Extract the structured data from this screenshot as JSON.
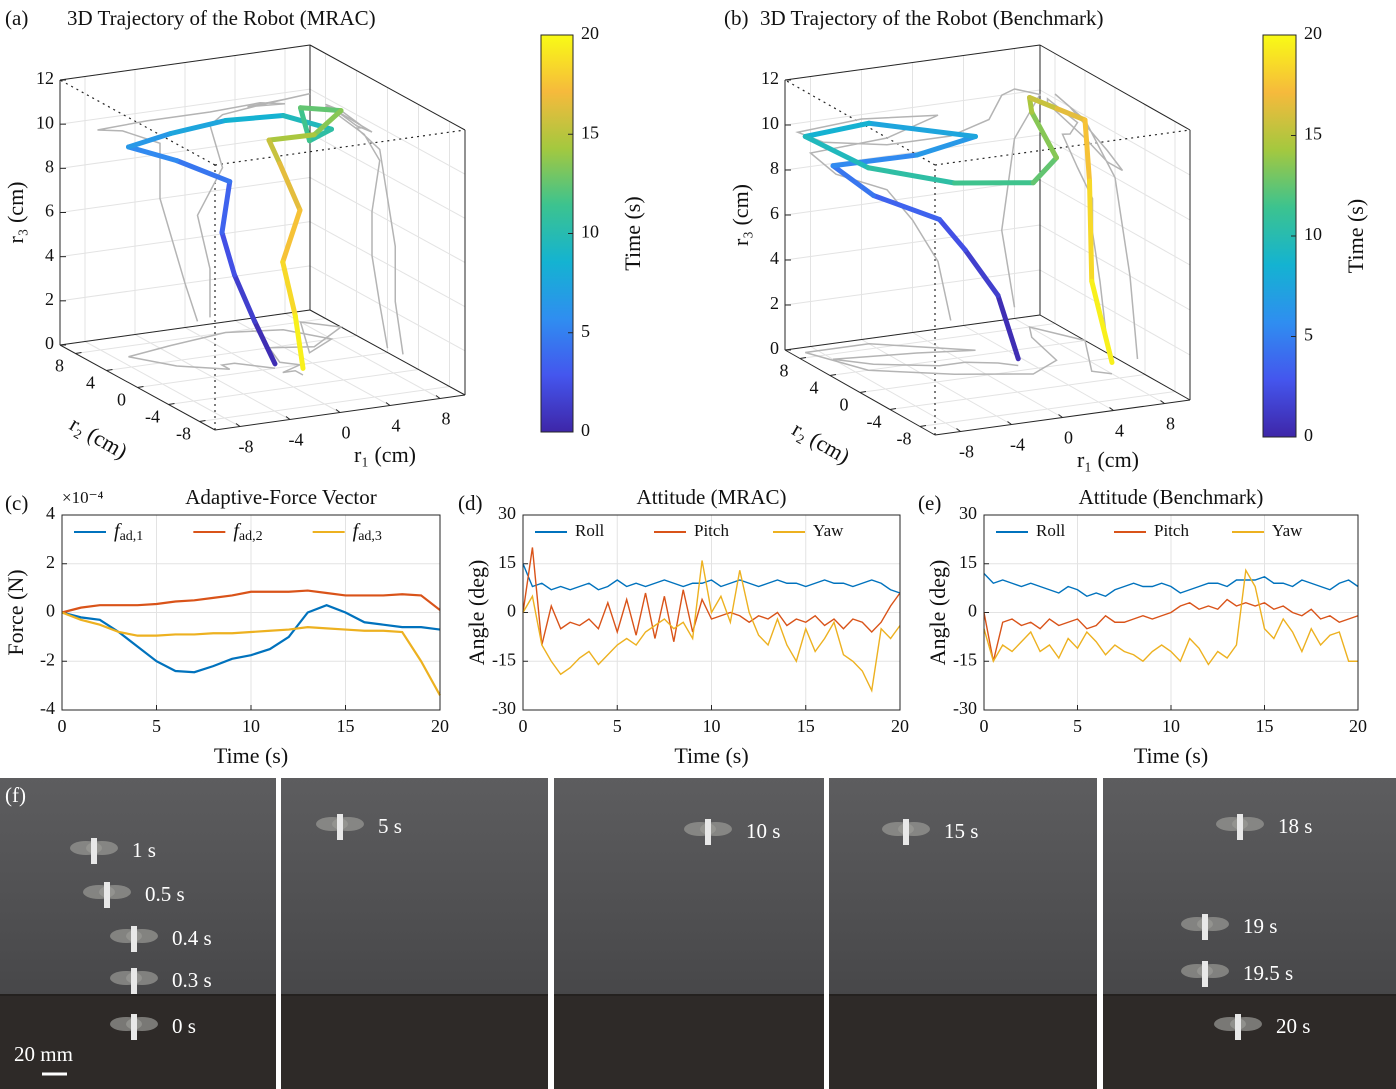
{
  "chart_data": [
    {
      "type": "trajectory3d",
      "panel_label": "(a)",
      "title": "3D Trajectory of the Robot (MRAC)",
      "xlabel": "r₁ (cm)",
      "ylabel": "r₂ (cm)",
      "zlabel": "r₃ (cm)",
      "xlim": [
        -10,
        10
      ],
      "ylim": [
        -10,
        10
      ],
      "zlim": [
        0,
        12
      ],
      "xticks": [
        -8,
        -4,
        0,
        4,
        8
      ],
      "yticks": [
        8,
        4,
        0,
        -4,
        -8
      ],
      "zticks": [
        0,
        2,
        4,
        6,
        8,
        10,
        12
      ],
      "t": [
        0,
        1,
        2,
        3,
        4,
        5,
        6,
        7,
        8,
        9,
        10,
        11,
        12,
        13,
        14,
        15,
        16,
        17,
        18,
        19,
        20
      ],
      "x": [
        1,
        0,
        -1,
        -2,
        -2,
        -5,
        -7,
        -3,
        2,
        6,
        8,
        5,
        8,
        10,
        6,
        3,
        2,
        3,
        1,
        2,
        2
      ],
      "y": [
        0,
        1,
        2,
        2,
        1,
        3,
        6,
        7,
        8,
        7,
        4,
        2,
        8,
        6,
        3,
        4,
        1,
        0,
        -1,
        -1,
        -2
      ],
      "z": [
        0.2,
        2,
        4,
        6,
        8.5,
        9.3,
        9.5,
        9.6,
        9.6,
        9.7,
        9.5,
        9.6,
        9.7,
        9.8,
        9.6,
        9.4,
        9,
        7,
        5,
        2.5,
        0.3
      ],
      "colorbar": {
        "label": "Time (s)",
        "clim": [
          0,
          20
        ],
        "ticks": [
          0,
          5,
          10,
          15,
          20
        ]
      },
      "colormap": [
        "#3e26a8",
        "#4456ee",
        "#2f8ef0",
        "#14b3d1",
        "#3cc38f",
        "#a4c83f",
        "#f6ba3c",
        "#f9fb15"
      ],
      "shadow_color": "#b4b4b4"
    },
    {
      "type": "trajectory3d",
      "panel_label": "(b)",
      "title": "3D Trajectory of the Robot (Benchmark)",
      "xlabel": "r₁ (cm)",
      "ylabel": "r₂ (cm)",
      "zlabel": "r₃ (cm)",
      "xlim": [
        -10,
        10
      ],
      "ylim": [
        -10,
        10
      ],
      "zlim": [
        0,
        12
      ],
      "xticks": [
        -8,
        -4,
        0,
        4,
        8
      ],
      "yticks": [
        8,
        4,
        0,
        -4,
        -8
      ],
      "zticks": [
        0,
        2,
        4,
        6,
        8,
        10,
        12
      ],
      "t": [
        0,
        1,
        2,
        3,
        4,
        5,
        6,
        7,
        8,
        9,
        10,
        11,
        12,
        13,
        14,
        15,
        16,
        17,
        18,
        19,
        20
      ],
      "x": [
        3,
        2,
        0,
        -2,
        -6,
        -8,
        -2,
        2,
        -4,
        -9,
        -7,
        -2,
        3,
        6,
        7,
        8,
        9,
        10,
        8,
        7,
        8
      ],
      "y": [
        1,
        2,
        3,
        3,
        5,
        7,
        6,
        5,
        9,
        9,
        4,
        1,
        -1,
        1,
        6,
        8,
        6,
        4,
        0,
        -2,
        -3
      ],
      "z": [
        0.3,
        3,
        5,
        6.5,
        7.5,
        8.6,
        8.8,
        9.5,
        9.8,
        9.6,
        9,
        8.5,
        8.5,
        9,
        10,
        10.2,
        10,
        9.8,
        8,
        4,
        0.5
      ],
      "colorbar": {
        "label": "Time (s)",
        "clim": [
          0,
          20
        ],
        "ticks": [
          0,
          5,
          10,
          15,
          20
        ]
      },
      "colormap": [
        "#3e26a8",
        "#4456ee",
        "#2f8ef0",
        "#14b3d1",
        "#3cc38f",
        "#a4c83f",
        "#f6ba3c",
        "#f9fb15"
      ],
      "shadow_color": "#b4b4b4"
    },
    {
      "type": "line",
      "panel_label": "(c)",
      "title": "Adaptive-Force Vector",
      "multiplier": "×10⁻⁴",
      "xlabel": "Time (s)",
      "ylabel": "Force (N)",
      "grid": true,
      "legend": "top",
      "xlim": [
        0,
        20
      ],
      "xticks": [
        0,
        5,
        10,
        15,
        20
      ],
      "ylim": [
        -4,
        4
      ],
      "yticks": [
        -4,
        -2,
        0,
        2,
        4
      ],
      "x": [
        0,
        1,
        2,
        3,
        4,
        5,
        6,
        7,
        8,
        9,
        10,
        11,
        12,
        13,
        14,
        15,
        16,
        17,
        18,
        19,
        20
      ],
      "series": [
        {
          "name": "fad,1",
          "color": "#0072bd",
          "values": [
            0,
            -0.2,
            -0.3,
            -0.8,
            -1.4,
            -2.0,
            -2.4,
            -2.45,
            -2.2,
            -1.9,
            -1.75,
            -1.5,
            -1.0,
            0,
            0.3,
            0,
            -0.4,
            -0.5,
            -0.6,
            -0.6,
            -0.7
          ]
        },
        {
          "name": "fad,2",
          "color": "#d95319",
          "values": [
            0,
            0.2,
            0.3,
            0.3,
            0.3,
            0.35,
            0.45,
            0.5,
            0.6,
            0.7,
            0.85,
            0.85,
            0.85,
            0.9,
            0.8,
            0.7,
            0.7,
            0.7,
            0.75,
            0.7,
            0.1
          ]
        },
        {
          "name": "fad,3",
          "color": "#edb120",
          "values": [
            0,
            -0.3,
            -0.5,
            -0.8,
            -0.95,
            -0.95,
            -0.9,
            -0.9,
            -0.85,
            -0.85,
            -0.8,
            -0.75,
            -0.7,
            -0.6,
            -0.65,
            -0.7,
            -0.75,
            -0.75,
            -0.8,
            -2.0,
            -3.4
          ]
        }
      ]
    },
    {
      "type": "line",
      "panel_label": "(d)",
      "title": "Attitude (MRAC)",
      "xlabel": "Time (s)",
      "ylabel": "Angle (deg)",
      "grid": true,
      "legend": "top",
      "xlim": [
        0,
        20
      ],
      "xticks": [
        0,
        5,
        10,
        15,
        20
      ],
      "ylim": [
        -30,
        30
      ],
      "yticks": [
        -30,
        -15,
        0,
        15,
        30
      ],
      "x": [
        0,
        0.5,
        1,
        1.5,
        2,
        2.5,
        3,
        3.5,
        4,
        4.5,
        5,
        5.5,
        6,
        6.5,
        7,
        7.5,
        8,
        8.5,
        9,
        9.5,
        10,
        10.5,
        11,
        11.5,
        12,
        12.5,
        13,
        13.5,
        14,
        14.5,
        15,
        15.5,
        16,
        16.5,
        17,
        17.5,
        18,
        18.5,
        19,
        19.5,
        20
      ],
      "series": [
        {
          "name": "Roll",
          "color": "#0072bd",
          "values": [
            15,
            8,
            9,
            7,
            8,
            7,
            8,
            9,
            7,
            8,
            10,
            8,
            9,
            8,
            9,
            10,
            9,
            8,
            9,
            9,
            10,
            8,
            9,
            10,
            9,
            8,
            9,
            10,
            9,
            9,
            8,
            9,
            10,
            9,
            9,
            8,
            9,
            10,
            9,
            7,
            6
          ]
        },
        {
          "name": "Pitch",
          "color": "#d95319",
          "values": [
            0,
            20,
            -10,
            2,
            -5,
            -3,
            -4,
            -2,
            -5,
            3,
            -6,
            4,
            -7,
            6,
            -8,
            5,
            -9,
            7,
            -6,
            4,
            -2,
            -1,
            0,
            -1,
            -3,
            -1,
            -2,
            0,
            -4,
            -2,
            -3,
            -1,
            -4,
            -2,
            -5,
            -2,
            -3,
            -6,
            -3,
            2,
            6
          ]
        },
        {
          "name": "Yaw",
          "color": "#edb120",
          "values": [
            0,
            5,
            -10,
            -15,
            -19,
            -17,
            -14,
            -12,
            -16,
            -13,
            -10,
            -8,
            -10,
            -6,
            -4,
            -2,
            -5,
            -3,
            -8,
            16,
            0,
            5,
            -3,
            13,
            0,
            -7,
            -10,
            -2,
            -10,
            -15,
            -5,
            -12,
            -8,
            -3,
            -13,
            -15,
            -18,
            -24,
            -5,
            -8,
            -4
          ]
        }
      ]
    },
    {
      "type": "line",
      "panel_label": "(e)",
      "title": "Attitude (Benchmark)",
      "xlabel": "Time (s)",
      "ylabel": "Angle (deg)",
      "grid": true,
      "legend": "top",
      "xlim": [
        0,
        20
      ],
      "xticks": [
        0,
        5,
        10,
        15,
        20
      ],
      "ylim": [
        -30,
        30
      ],
      "yticks": [
        -30,
        -15,
        0,
        15,
        30
      ],
      "x": [
        0,
        0.5,
        1,
        1.5,
        2,
        2.5,
        3,
        3.5,
        4,
        4.5,
        5,
        5.5,
        6,
        6.5,
        7,
        7.5,
        8,
        8.5,
        9,
        9.5,
        10,
        10.5,
        11,
        11.5,
        12,
        12.5,
        13,
        13.5,
        14,
        14.5,
        15,
        15.5,
        16,
        16.5,
        17,
        17.5,
        18,
        18.5,
        19,
        19.5,
        20
      ],
      "series": [
        {
          "name": "Roll",
          "color": "#0072bd",
          "values": [
            12,
            9,
            10,
            9,
            8,
            9,
            8,
            7,
            6,
            8,
            7,
            5,
            6,
            5,
            7,
            8,
            9,
            8,
            8,
            9,
            8,
            6,
            7,
            8,
            9,
            9,
            8,
            10,
            10,
            10,
            11,
            9,
            9,
            8,
            10,
            9,
            8,
            7,
            9,
            10,
            8
          ]
        },
        {
          "name": "Pitch",
          "color": "#d95319",
          "values": [
            0,
            -15,
            -3,
            -2,
            -4,
            -3,
            -5,
            -2,
            -4,
            -3,
            -2,
            -5,
            -4,
            -1,
            -3,
            -3,
            -2,
            -1,
            -2,
            -1,
            0,
            2,
            3,
            1,
            2,
            1,
            4,
            2,
            3,
            2,
            3,
            1,
            2,
            0,
            -1,
            1,
            -2,
            -1,
            -3,
            -2,
            -1
          ]
        },
        {
          "name": "Yaw",
          "color": "#edb120",
          "values": [
            -5,
            -15,
            -10,
            -12,
            -9,
            -6,
            -12,
            -10,
            -14,
            -8,
            -11,
            -6,
            -9,
            -13,
            -10,
            -12,
            -13,
            -15,
            -12,
            -10,
            -12,
            -15,
            -8,
            -11,
            -16,
            -12,
            -14,
            -10,
            13,
            8,
            -5,
            -8,
            -2,
            -6,
            -12,
            -5,
            -10,
            -7,
            -6,
            -15,
            -15
          ]
        }
      ]
    }
  ],
  "photo_strip": {
    "panel_label": "(f)",
    "scale_bar": "20 mm",
    "frames": [
      {
        "labels": [
          "1 s",
          "0.5 s",
          "0.4 s",
          "0.3 s",
          "0 s"
        ]
      },
      {
        "labels": [
          "5 s"
        ]
      },
      {
        "labels": [
          "10 s"
        ]
      },
      {
        "labels": [
          "15 s"
        ]
      },
      {
        "labels": [
          "18 s",
          "19 s",
          "19.5 s",
          "20 s"
        ]
      }
    ]
  }
}
